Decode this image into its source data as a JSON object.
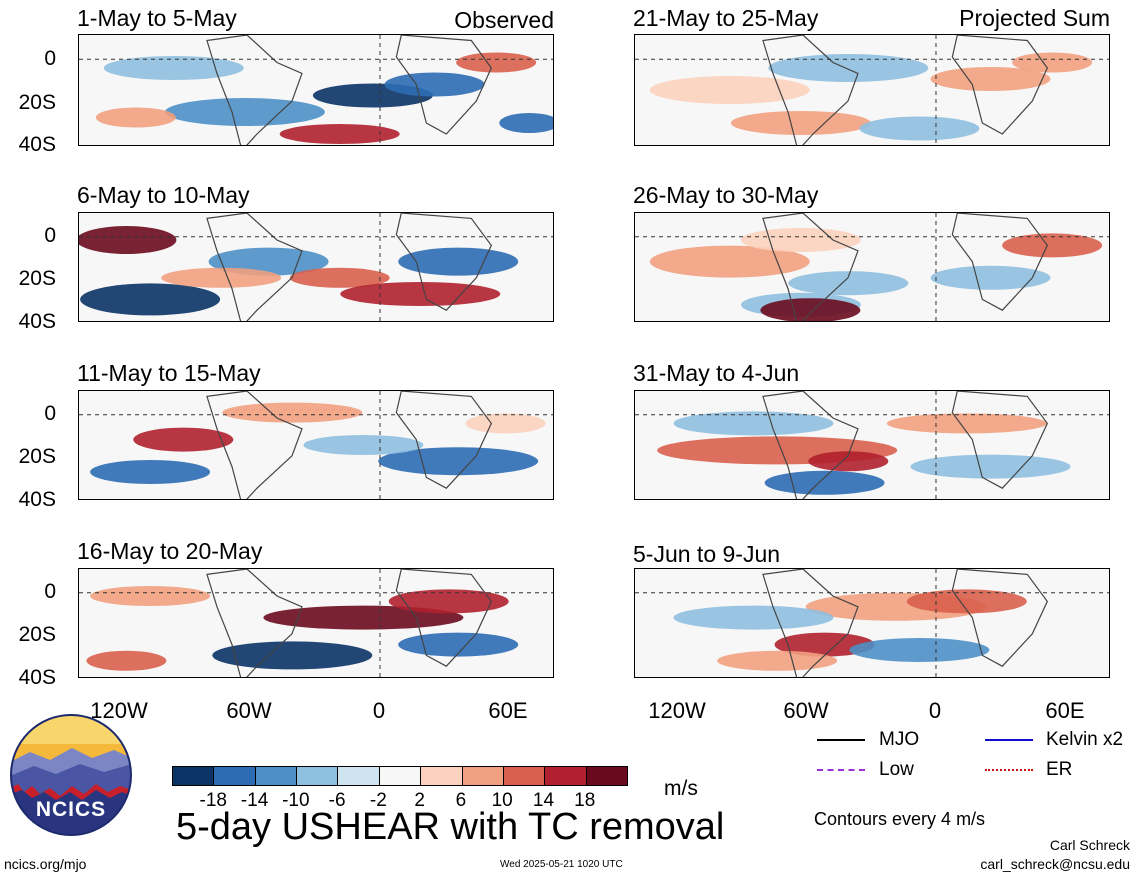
{
  "figure": {
    "title": "5-day USHEAR with TC removal",
    "units": "m/s",
    "site": "ncics.org/mjo",
    "timestamp": "Wed 2025-05-21 1020 UTC",
    "author": "Carl Schreck",
    "email": "carl_schreck@ncsu.edu",
    "contours_note": "Contours every 4 m/s",
    "logo_text": "NCICS"
  },
  "chart_data": {
    "type": "heatmap",
    "variable": "5-day USHEAR with TC removal",
    "units": "m/s",
    "x_ticks": [
      "120W",
      "60W",
      "0",
      "60E"
    ],
    "y_ticks": [
      "0",
      "20S",
      "40S"
    ],
    "colorbar": {
      "levels": [
        "-18",
        "-14",
        "-10",
        "-6",
        "-2",
        "2",
        "6",
        "10",
        "14",
        "18"
      ],
      "colors": [
        "#0b3366",
        "#2c6cb2",
        "#4d8fc6",
        "#8ebfdf",
        "#cfe4f1",
        "#f7f7f7",
        "#fbd2bd",
        "#f1a07f",
        "#d85f4c",
        "#b0202e",
        "#6a0a1e"
      ]
    },
    "panels": [
      {
        "label": "1-May to 5-May",
        "note": "Observed"
      },
      {
        "label": "6-May to 10-May",
        "note": ""
      },
      {
        "label": "11-May to 15-May",
        "note": ""
      },
      {
        "label": "16-May to 20-May",
        "note": ""
      },
      {
        "label": "21-May to 25-May",
        "note": "Projected Sum"
      },
      {
        "label": "26-May to 30-May",
        "note": ""
      },
      {
        "label": "31-May to 4-Jun",
        "note": ""
      },
      {
        "label": "5-Jun to 9-Jun",
        "note": ""
      }
    ],
    "legend": [
      {
        "label": "MJO",
        "color": "#000000"
      },
      {
        "label": "Kelvin x2",
        "color": "#1010d0"
      },
      {
        "label": "Low",
        "color": "#9b30d9"
      },
      {
        "label": "ER",
        "color": "#d01010"
      }
    ]
  }
}
